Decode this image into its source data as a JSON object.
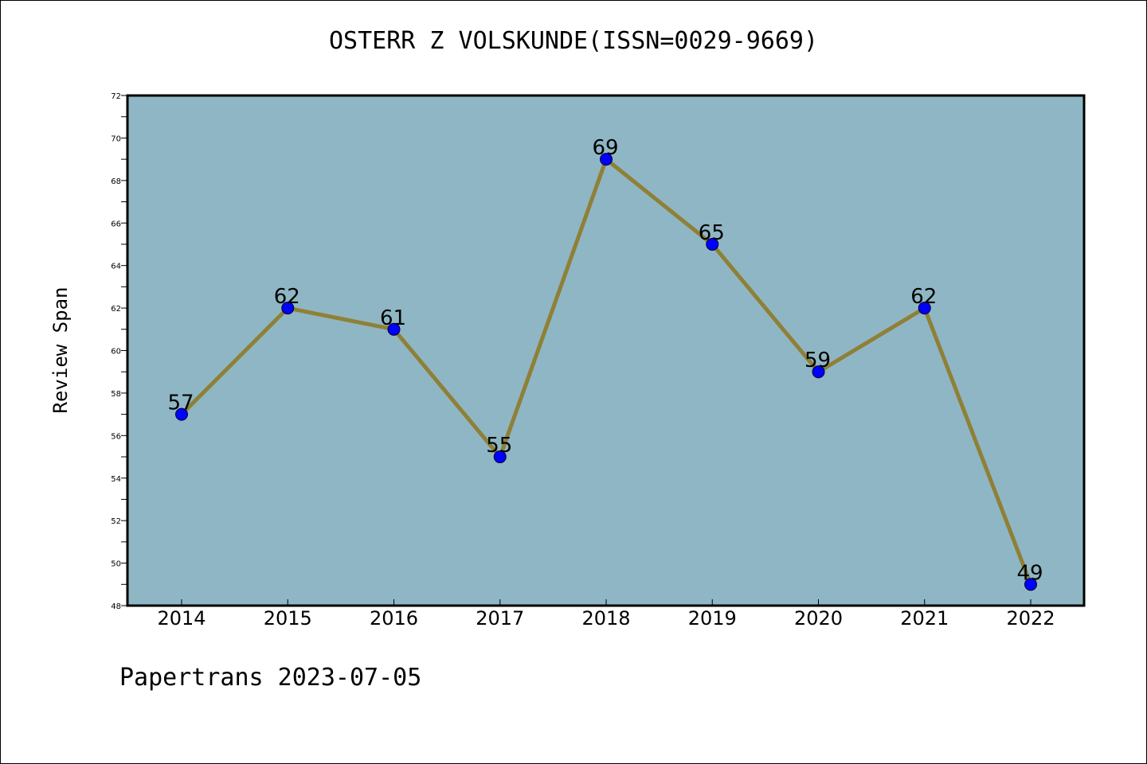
{
  "chart_data": {
    "type": "line",
    "title": "OSTERR Z VOLSKUNDE(ISSN=0029-9669)",
    "xlabel": "",
    "ylabel": "Review Span",
    "categories": [
      "2014",
      "2015",
      "2016",
      "2017",
      "2018",
      "2019",
      "2020",
      "2021",
      "2022"
    ],
    "series": [
      {
        "values": [
          57,
          62,
          61,
          55,
          69,
          65,
          59,
          62,
          49
        ]
      }
    ],
    "data_labels": [
      "57",
      "62",
      "61",
      "55",
      "69",
      "65",
      "59",
      "62",
      "49"
    ],
    "ylim": [
      48,
      72
    ],
    "yticks": [
      "48",
      "50",
      "52",
      "54",
      "56",
      "58",
      "60",
      "62",
      "64",
      "66",
      "68",
      "70",
      "72"
    ],
    "grid": false,
    "colors": {
      "plot_background": "#8fb6c4",
      "line": "#8f8037",
      "marker": "#0000ff"
    }
  },
  "footer": "Papertrans 2023-07-05"
}
